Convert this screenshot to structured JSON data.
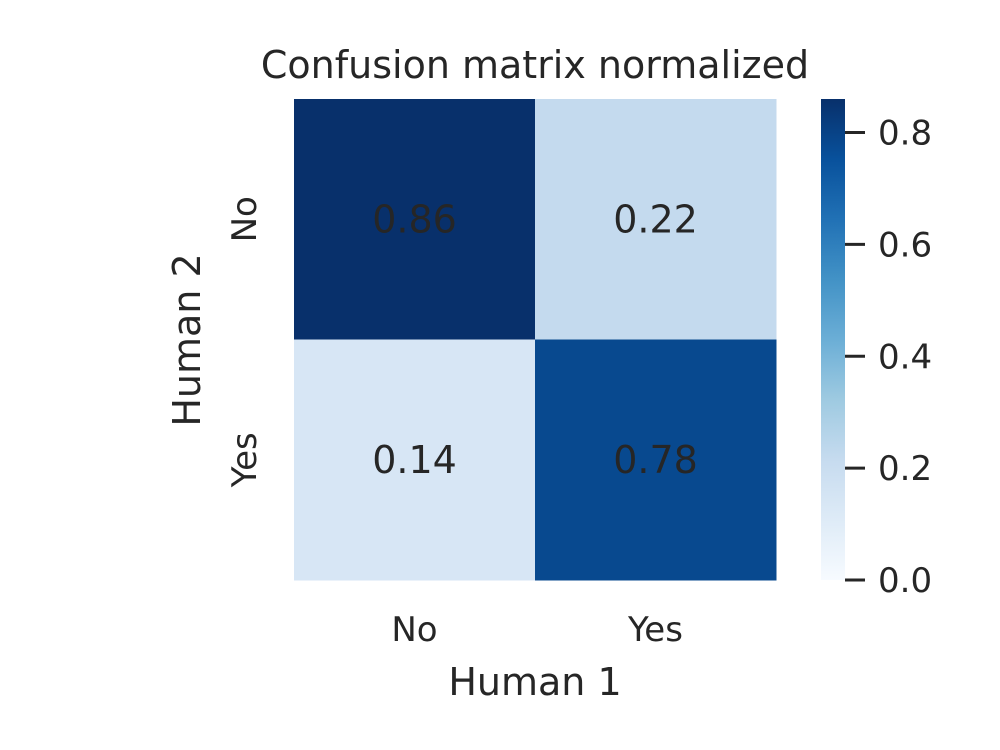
{
  "chart_data": {
    "type": "heatmap",
    "title": "Confusion matrix normalized",
    "xlabel": "Human 1",
    "ylabel": "Human 2",
    "x_categories": [
      "No",
      "Yes"
    ],
    "y_categories": [
      "No",
      "Yes"
    ],
    "values": [
      [
        0.86,
        0.22
      ],
      [
        0.14,
        0.78
      ]
    ],
    "cell_labels": [
      [
        "0.86",
        "0.22"
      ],
      [
        "0.14",
        "0.78"
      ]
    ],
    "colormap": "Blues",
    "colorbar": {
      "range": [
        0.0,
        0.86
      ],
      "ticks": [
        0.0,
        0.2,
        0.4,
        0.6,
        0.8
      ],
      "tick_labels": [
        "0.0",
        "0.2",
        "0.4",
        "0.6",
        "0.8"
      ]
    },
    "grid": false
  }
}
